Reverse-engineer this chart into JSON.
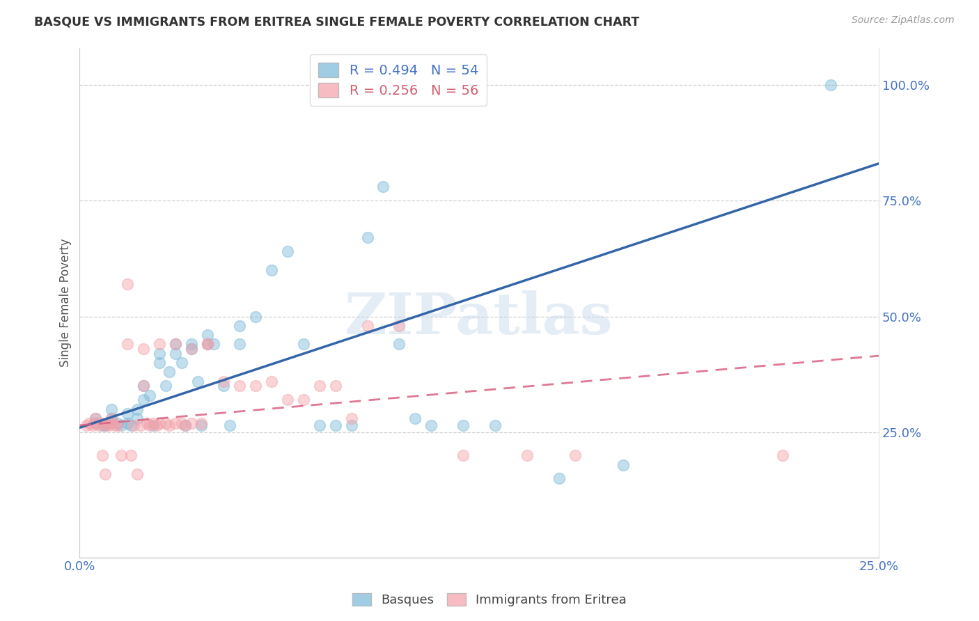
{
  "title": "BASQUE VS IMMIGRANTS FROM ERITREA SINGLE FEMALE POVERTY CORRELATION CHART",
  "source": "Source: ZipAtlas.com",
  "ylabel_label": "Single Female Poverty",
  "xlim": [
    0.0,
    0.25
  ],
  "ylim": [
    -0.02,
    1.08
  ],
  "xticks": [
    0.0,
    0.05,
    0.1,
    0.15,
    0.2,
    0.25
  ],
  "xtick_labels": [
    "0.0%",
    "",
    "",
    "",
    "",
    "25.0%"
  ],
  "ytick_positions": [
    0.25,
    0.5,
    0.75,
    1.0
  ],
  "ytick_labels": [
    "25.0%",
    "50.0%",
    "75.0%",
    "100.0%"
  ],
  "basque_color": "#7ab8d9",
  "eritrea_color": "#f4a0a8",
  "basque_line_color": "#3465a8",
  "eritrea_line_color": "#d96080",
  "legend_r_basque": "R = 0.494",
  "legend_n_basque": "N = 54",
  "legend_r_eritrea": "R = 0.256",
  "legend_n_eritrea": "N = 56",
  "watermark": "ZIPatlas",
  "basque_line_x0": 0.0,
  "basque_line_y0": 0.26,
  "basque_line_x1": 0.25,
  "basque_line_y1": 0.83,
  "eritrea_line_x0": 0.0,
  "eritrea_line_y0": 0.265,
  "eritrea_line_x1": 0.25,
  "eritrea_line_y1": 0.415,
  "basque_x": [
    0.005,
    0.005,
    0.007,
    0.008,
    0.009,
    0.01,
    0.01,
    0.012,
    0.013,
    0.015,
    0.015,
    0.016,
    0.018,
    0.018,
    0.02,
    0.02,
    0.022,
    0.023,
    0.025,
    0.025,
    0.027,
    0.028,
    0.03,
    0.03,
    0.032,
    0.033,
    0.035,
    0.035,
    0.037,
    0.038,
    0.04,
    0.04,
    0.042,
    0.045,
    0.047,
    0.05,
    0.05,
    0.055,
    0.06,
    0.065,
    0.07,
    0.075,
    0.08,
    0.085,
    0.09,
    0.095,
    0.1,
    0.105,
    0.11,
    0.12,
    0.13,
    0.15,
    0.17,
    0.235
  ],
  "basque_y": [
    0.27,
    0.28,
    0.265,
    0.265,
    0.27,
    0.28,
    0.3,
    0.27,
    0.265,
    0.27,
    0.29,
    0.265,
    0.28,
    0.3,
    0.32,
    0.35,
    0.33,
    0.265,
    0.42,
    0.4,
    0.35,
    0.38,
    0.42,
    0.44,
    0.4,
    0.265,
    0.43,
    0.44,
    0.36,
    0.265,
    0.44,
    0.46,
    0.44,
    0.35,
    0.265,
    0.44,
    0.48,
    0.5,
    0.6,
    0.64,
    0.44,
    0.265,
    0.265,
    0.265,
    0.67,
    0.78,
    0.44,
    0.28,
    0.265,
    0.265,
    0.265,
    0.15,
    0.18,
    1.0
  ],
  "eritrea_x": [
    0.002,
    0.003,
    0.004,
    0.005,
    0.005,
    0.006,
    0.007,
    0.007,
    0.008,
    0.008,
    0.009,
    0.01,
    0.01,
    0.011,
    0.012,
    0.013,
    0.015,
    0.015,
    0.016,
    0.017,
    0.018,
    0.019,
    0.02,
    0.02,
    0.021,
    0.022,
    0.023,
    0.024,
    0.025,
    0.025,
    0.027,
    0.028,
    0.03,
    0.03,
    0.032,
    0.033,
    0.035,
    0.035,
    0.038,
    0.04,
    0.04,
    0.045,
    0.05,
    0.055,
    0.06,
    0.065,
    0.07,
    0.075,
    0.08,
    0.085,
    0.09,
    0.1,
    0.12,
    0.14,
    0.155,
    0.22
  ],
  "eritrea_y": [
    0.265,
    0.27,
    0.265,
    0.27,
    0.28,
    0.265,
    0.27,
    0.2,
    0.265,
    0.16,
    0.265,
    0.27,
    0.28,
    0.265,
    0.265,
    0.2,
    0.44,
    0.57,
    0.2,
    0.265,
    0.16,
    0.265,
    0.35,
    0.43,
    0.27,
    0.265,
    0.27,
    0.265,
    0.27,
    0.44,
    0.27,
    0.265,
    0.27,
    0.44,
    0.27,
    0.265,
    0.27,
    0.43,
    0.27,
    0.44,
    0.44,
    0.36,
    0.35,
    0.35,
    0.36,
    0.32,
    0.32,
    0.35,
    0.35,
    0.28,
    0.48,
    0.48,
    0.2,
    0.2,
    0.2,
    0.2
  ]
}
